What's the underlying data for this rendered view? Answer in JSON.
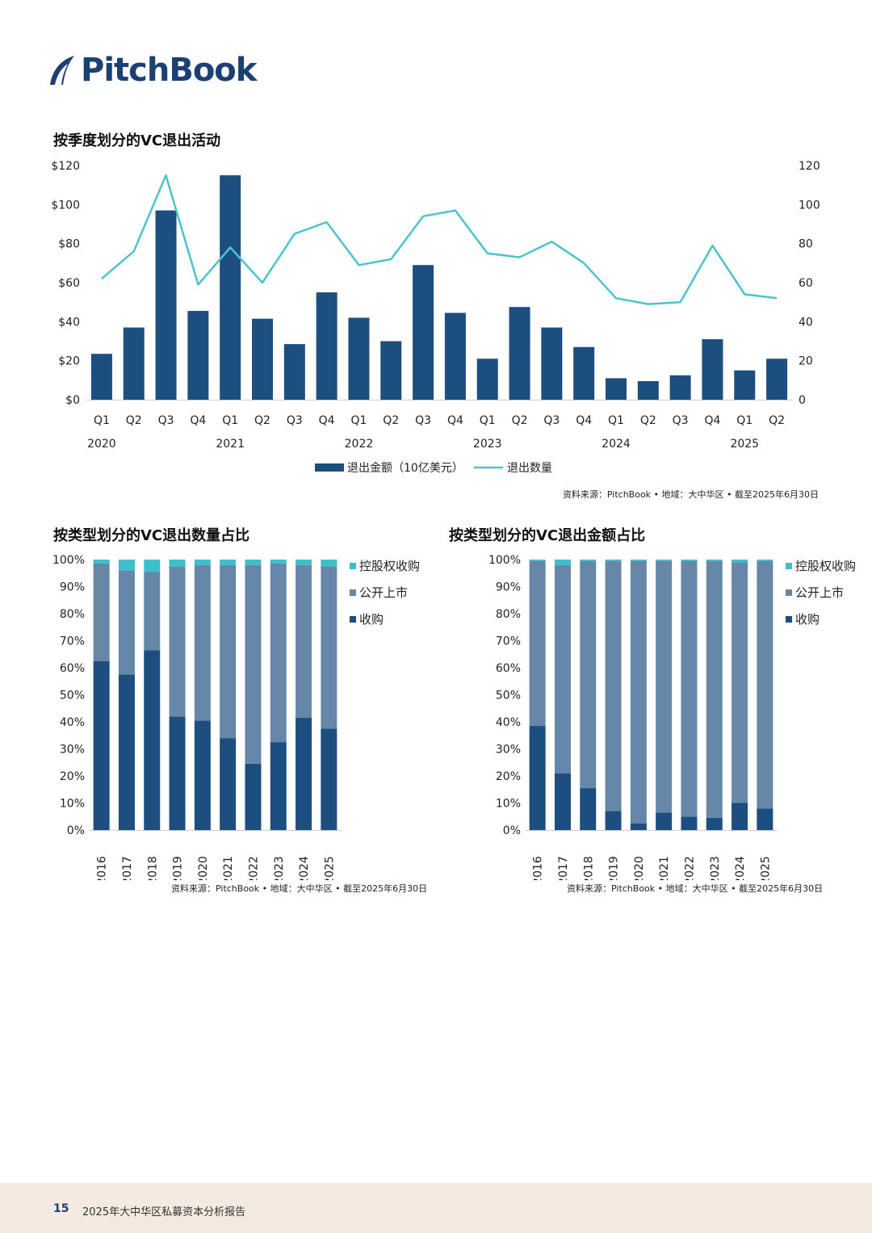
{
  "brand": {
    "name": "PitchBook"
  },
  "colors": {
    "navy": "#1c4e80",
    "mid": "#6687a8",
    "teal": "#3dbfcc",
    "line": "#4cc3cd"
  },
  "chart_data": [
    {
      "id": "quarterly",
      "type": "bar+line",
      "title": "按季度划分的VC退出活动",
      "categories": [
        "Q1",
        "Q2",
        "Q3",
        "Q4",
        "Q1",
        "Q2",
        "Q3",
        "Q4",
        "Q1",
        "Q2",
        "Q3",
        "Q4",
        "Q1",
        "Q2",
        "Q3",
        "Q4",
        "Q1",
        "Q2",
        "Q3",
        "Q4",
        "Q1",
        "Q2"
      ],
      "years": [
        "2020",
        "2021",
        "2022",
        "2023",
        "2024",
        "2025"
      ],
      "series": [
        {
          "name": "退出金额（10亿美元）",
          "type": "bar",
          "axis": "left",
          "values": [
            23.5,
            37,
            97,
            45.5,
            115,
            41.5,
            28.5,
            55,
            42,
            30,
            69,
            44.5,
            21,
            47.5,
            37,
            27,
            11,
            9.5,
            12.5,
            31,
            15,
            21
          ]
        },
        {
          "name": "退出数量",
          "type": "line",
          "axis": "right",
          "values": [
            62,
            76,
            115,
            59,
            78,
            60,
            85,
            91,
            69,
            72,
            94,
            97,
            75,
            73,
            81,
            70,
            52,
            49,
            50,
            79,
            54,
            52
          ]
        }
      ],
      "left_axis": {
        "min": 0,
        "max": 120,
        "ticks": [
          "$0",
          "$20",
          "$40",
          "$60",
          "$80",
          "$100",
          "$120"
        ]
      },
      "right_axis": {
        "min": 0,
        "max": 120,
        "ticks": [
          "0",
          "20",
          "40",
          "60",
          "80",
          "100",
          "120"
        ]
      },
      "legend": "bottom",
      "source": "资料来源：PitchBook • 地域：大中华区 • 截至2025年6月30日"
    },
    {
      "id": "count_share",
      "type": "stacked-bar-100",
      "title": "按类型划分的VC退出数量占比",
      "categories": [
        "2016",
        "2017",
        "2018",
        "2019",
        "2020",
        "2021",
        "2022",
        "2023",
        "2024",
        "2025"
      ],
      "series": [
        {
          "name": "收购",
          "values": [
            62.5,
            57.5,
            66.5,
            42,
            40.5,
            34,
            24.5,
            32.5,
            41.5,
            37.5
          ]
        },
        {
          "name": "公开上市",
          "values": [
            36,
            38.5,
            29,
            55.5,
            57.5,
            64,
            73.5,
            66,
            56.5,
            60
          ]
        },
        {
          "name": "控股权收购",
          "values": [
            1.5,
            4,
            4.5,
            2.5,
            2,
            2,
            2,
            1.5,
            2,
            2.5
          ]
        }
      ],
      "y_ticks": [
        "0%",
        "10%",
        "20%",
        "30%",
        "40%",
        "50%",
        "60%",
        "70%",
        "80%",
        "90%",
        "100%"
      ],
      "legend": [
        "控股权收购",
        "公开上市",
        "收购"
      ],
      "source": "资料来源：PitchBook • 地域：大中华区 • 截至2025年6月30日"
    },
    {
      "id": "value_share",
      "type": "stacked-bar-100",
      "title": "按类型划分的VC退出金额占比",
      "categories": [
        "2016",
        "2017",
        "2018",
        "2019",
        "2020",
        "2021",
        "2022",
        "2023",
        "2024",
        "2025"
      ],
      "series": [
        {
          "name": "收购",
          "values": [
            38.5,
            21,
            15.5,
            7,
            2.5,
            6.5,
            5,
            4.5,
            10,
            8
          ]
        },
        {
          "name": "公开上市",
          "values": [
            61,
            77,
            84,
            92.5,
            97,
            93,
            94.5,
            95,
            89,
            91.5
          ]
        },
        {
          "name": "控股权收购",
          "values": [
            0.5,
            2,
            0.5,
            0.5,
            0.5,
            0.5,
            0.5,
            0.5,
            1,
            0.5
          ]
        }
      ],
      "y_ticks": [
        "0%",
        "10%",
        "20%",
        "30%",
        "40%",
        "50%",
        "60%",
        "70%",
        "80%",
        "90%",
        "100%"
      ],
      "legend": [
        "控股权收购",
        "公开上市",
        "收购"
      ],
      "source": "资料来源：PitchBook • 地域：大中华区 • 截至2025年6月30日"
    }
  ],
  "footer": {
    "page": "15",
    "title": "2025年大中华区私募资本分析报告"
  }
}
